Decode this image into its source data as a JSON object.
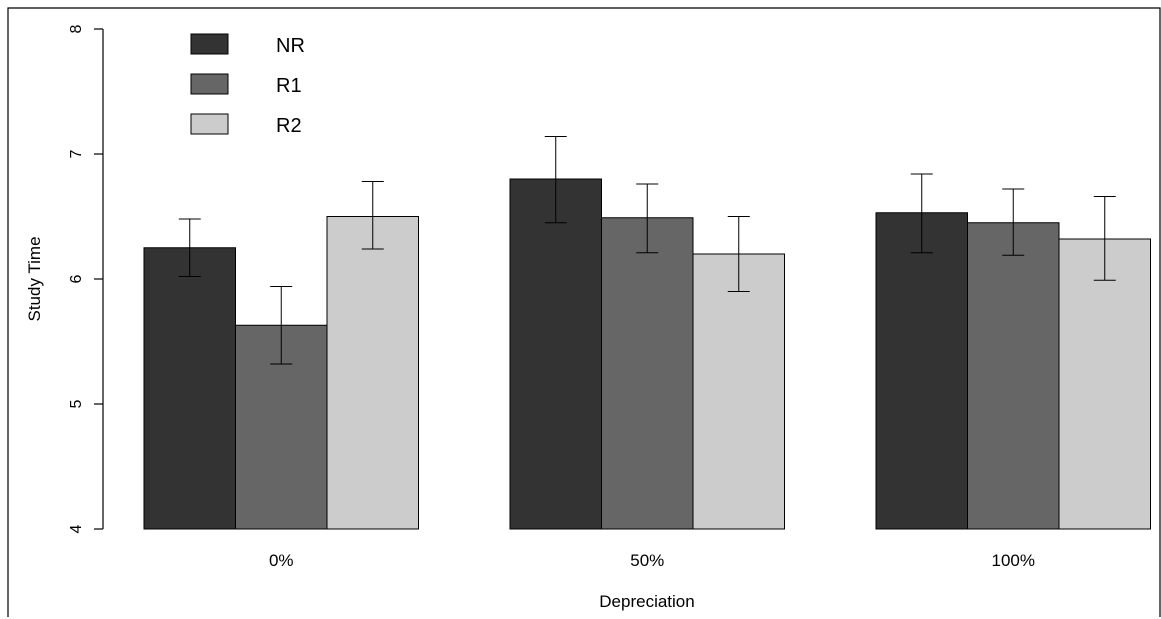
{
  "chart_data": {
    "type": "bar",
    "title": "",
    "xlabel": "Depreciation",
    "ylabel": "Study Time",
    "ylim": [
      4,
      8
    ],
    "yticks": [
      "4",
      "5",
      "6",
      "7",
      "8"
    ],
    "categories": [
      "0%",
      "50%",
      "100%"
    ],
    "series": [
      {
        "name": "NR",
        "color": "#333333",
        "values": [
          6.25,
          6.8,
          6.53
        ],
        "err_low": [
          6.02,
          6.45,
          6.21
        ],
        "err_high": [
          6.48,
          7.14,
          6.84
        ]
      },
      {
        "name": "R1",
        "color": "#666666",
        "values": [
          5.63,
          6.49,
          6.45
        ],
        "err_low": [
          5.32,
          6.21,
          6.19
        ],
        "err_high": [
          5.94,
          6.76,
          6.72
        ]
      },
      {
        "name": "R2",
        "color": "#cccccc",
        "values": [
          6.5,
          6.2,
          6.32
        ],
        "err_low": [
          6.24,
          5.9,
          5.99
        ],
        "err_high": [
          6.78,
          6.5,
          6.66
        ]
      }
    ],
    "legend": {
      "position": "top-left",
      "entries": [
        "NR",
        "R1",
        "R2"
      ]
    },
    "grid": false,
    "error_bars": true
  }
}
